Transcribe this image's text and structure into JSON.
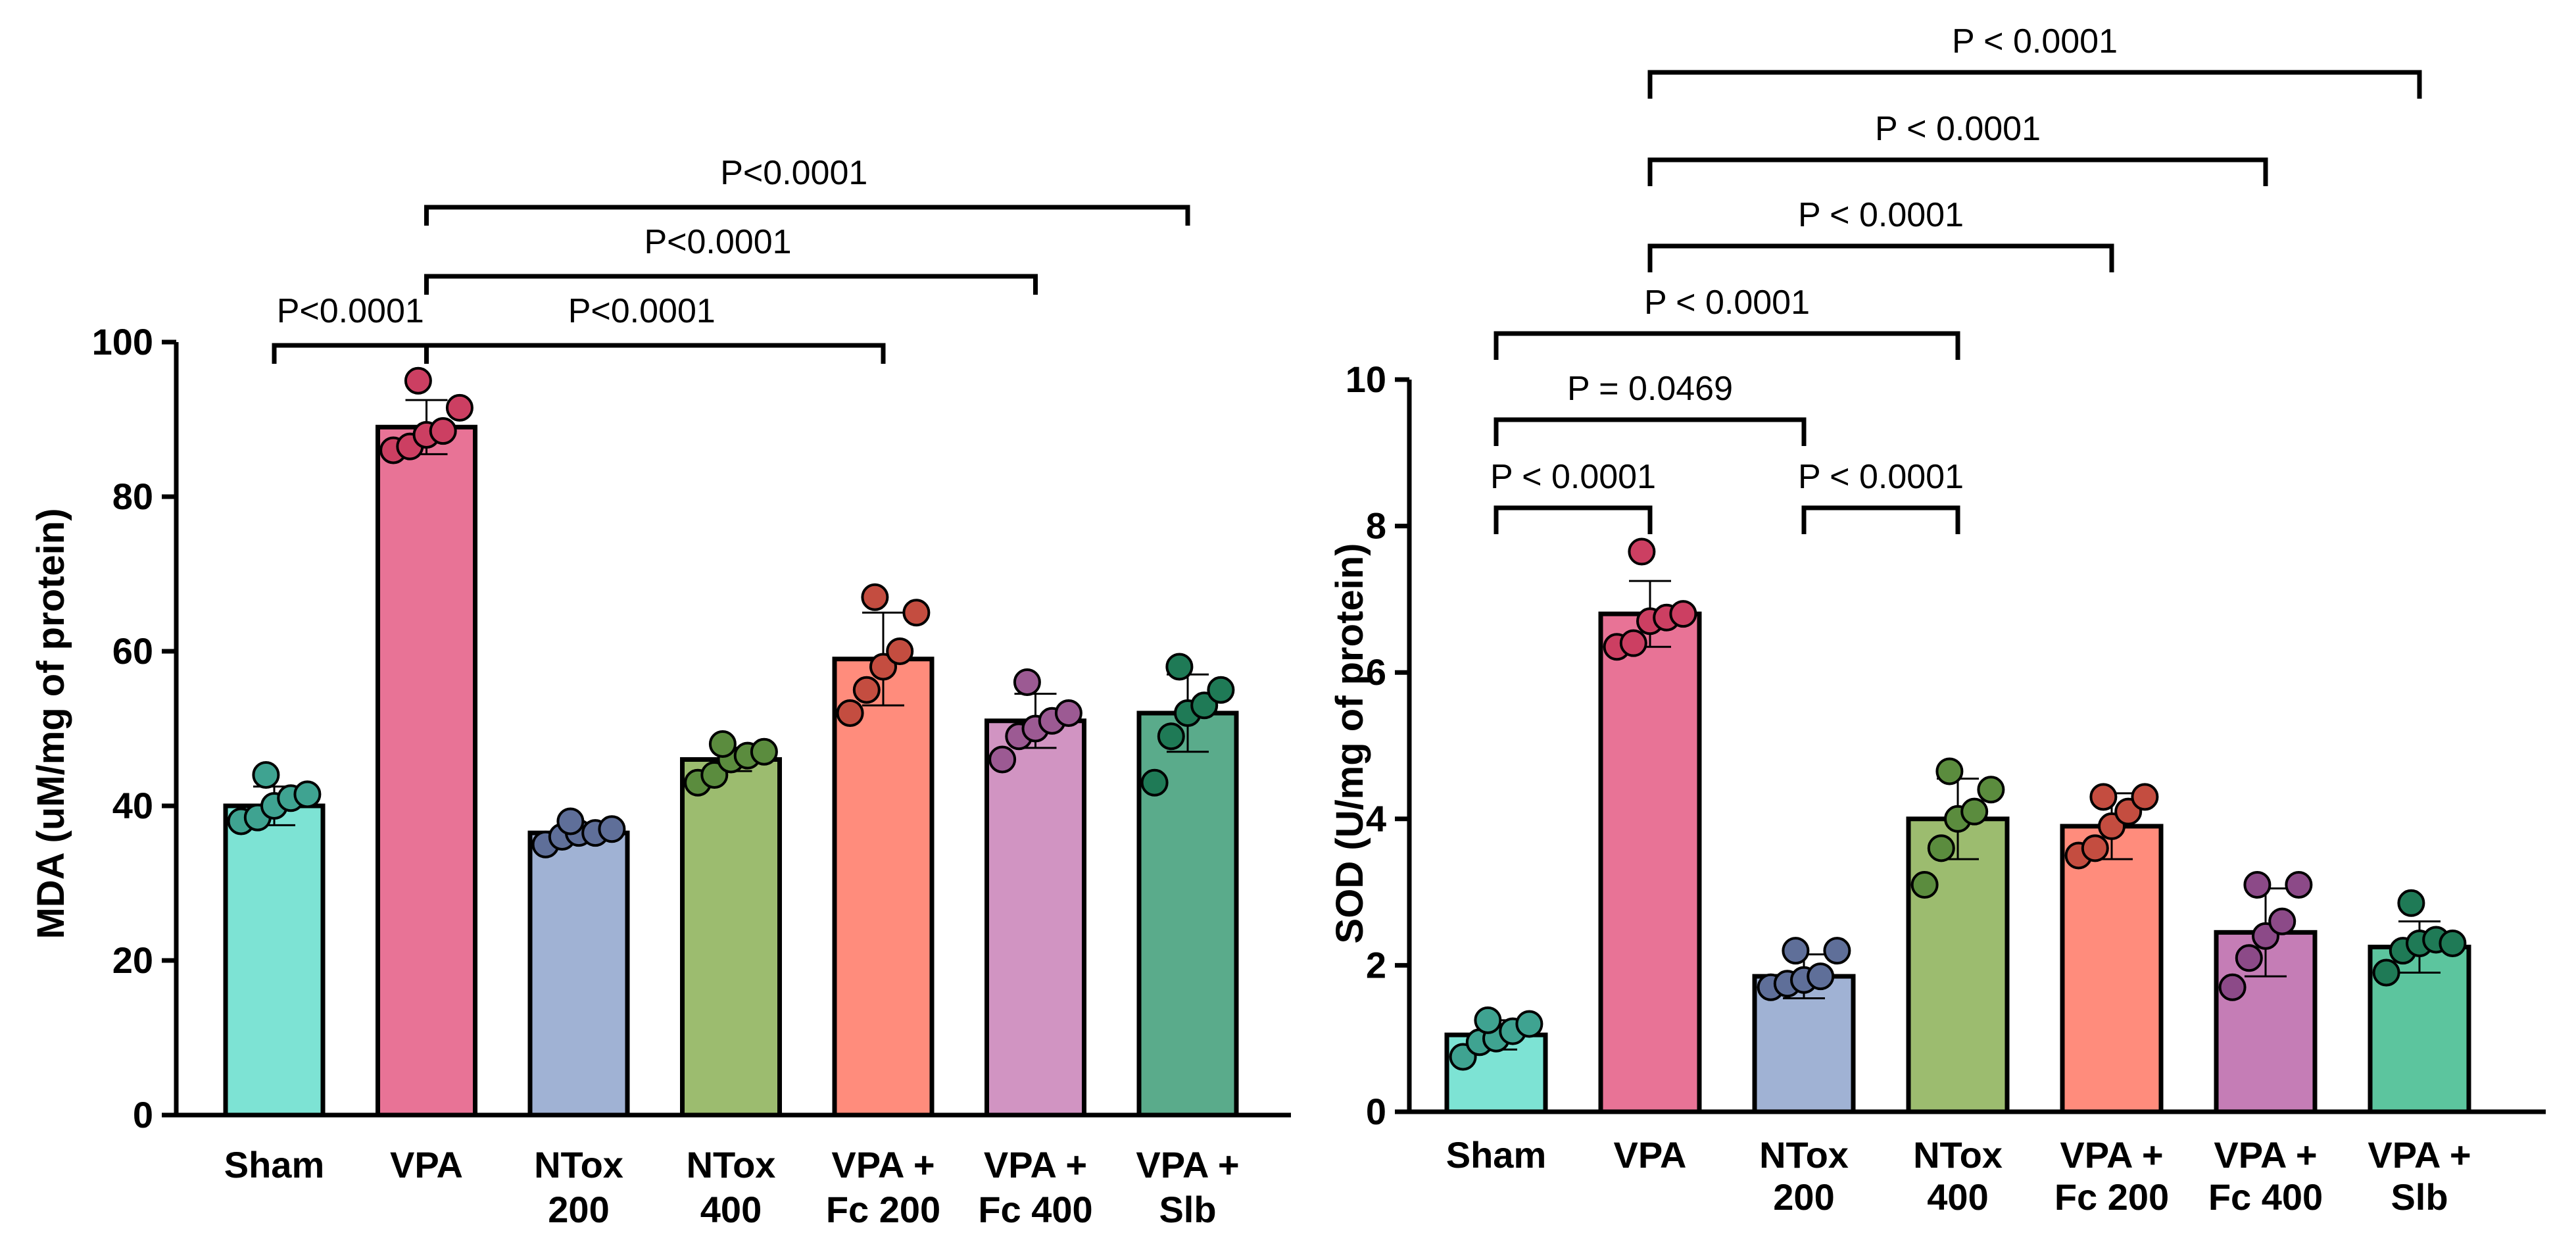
{
  "chart_data": [
    {
      "type": "bar",
      "title": "",
      "xlabel": "",
      "ylabel": "MDA (uM/mg of protein)",
      "ylim": [
        0,
        100
      ],
      "yticks": [
        0,
        20,
        40,
        60,
        80,
        100
      ],
      "categories": [
        [
          "Sham"
        ],
        [
          "VPA"
        ],
        [
          "NTox",
          "200"
        ],
        [
          "NTox",
          "400"
        ],
        [
          "VPA +",
          "Fc 200"
        ],
        [
          "VPA +",
          "Fc 400"
        ],
        [
          "VPA +",
          "Slb"
        ]
      ],
      "values": [
        40,
        89,
        36.5,
        46,
        59,
        51,
        52
      ],
      "errors": [
        2.5,
        3.5,
        1.3,
        1.5,
        6,
        3.5,
        5
      ],
      "colors": [
        "#7de3d4",
        "#e87396",
        "#a0b2d4",
        "#9cbc6f",
        "#ff8c7c",
        "#d194c2",
        "#5aab8b"
      ],
      "point_colors": [
        "#3fa391",
        "#cc3f62",
        "#5f6f99",
        "#5b8c3e",
        "#c44d40",
        "#9c5a93",
        "#1f7a56"
      ],
      "points": [
        [
          38,
          38.5,
          40,
          41,
          41.5,
          44
        ],
        [
          86,
          86.5,
          88,
          88.5,
          91.5,
          95
        ],
        [
          35,
          36,
          36.5,
          36.5,
          37,
          38
        ],
        [
          43,
          44,
          46,
          46.5,
          47,
          48
        ],
        [
          52,
          55,
          58,
          60,
          65,
          67
        ],
        [
          46,
          49,
          50,
          51,
          52,
          56
        ],
        [
          43,
          49,
          52,
          53,
          55,
          58
        ]
      ],
      "comparisons": [
        {
          "from": 0,
          "to": 1,
          "label": "P<0.0001"
        },
        {
          "from": 1,
          "to": 4,
          "label": "P<0.0001"
        },
        {
          "from": 1,
          "to": 5,
          "label": "P<0.0001"
        },
        {
          "from": 1,
          "to": 6,
          "label": "P<0.0001"
        }
      ]
    },
    {
      "type": "bar",
      "title": "",
      "xlabel": "",
      "ylabel": "SOD (U/mg of protein)",
      "ylim": [
        0,
        10
      ],
      "yticks": [
        0,
        2,
        4,
        6,
        8,
        10
      ],
      "categories": [
        [
          "Sham"
        ],
        [
          "VPA"
        ],
        [
          "NTox",
          "200"
        ],
        [
          "NTox",
          "400"
        ],
        [
          "VPA +",
          "Fc 200"
        ],
        [
          "VPA +",
          "Fc 400"
        ],
        [
          "VPA +",
          "Slb"
        ]
      ],
      "values": [
        1.05,
        6.8,
        1.85,
        4.0,
        3.9,
        2.45,
        2.25
      ],
      "errors": [
        0.2,
        0.45,
        0.3,
        0.55,
        0.45,
        0.6,
        0.35
      ],
      "colors": [
        "#7de3d4",
        "#e87396",
        "#a0b2d4",
        "#9cbc6f",
        "#ff8c7c",
        "#c57db6",
        "#5cc59e"
      ],
      "point_colors": [
        "#3fa391",
        "#cc3f62",
        "#5f6f99",
        "#5b8c3e",
        "#c44d40",
        "#8c4a88",
        "#1f7a56"
      ],
      "points": [
        [
          0.75,
          0.95,
          1.0,
          1.1,
          1.2,
          1.25
        ],
        [
          6.35,
          6.4,
          6.7,
          6.75,
          6.8,
          7.65
        ],
        [
          1.7,
          1.75,
          1.8,
          1.85,
          2.2,
          2.2
        ],
        [
          3.1,
          3.6,
          4.0,
          4.1,
          4.4,
          4.65
        ],
        [
          3.5,
          3.6,
          3.9,
          4.1,
          4.3,
          4.3
        ],
        [
          1.7,
          2.1,
          2.4,
          2.6,
          3.1,
          3.1
        ],
        [
          1.9,
          2.2,
          2.3,
          2.35,
          2.3,
          2.85
        ]
      ],
      "comparisons": [
        {
          "from": 0,
          "to": 1,
          "label": "P < 0.0001"
        },
        {
          "from": 2,
          "to": 3,
          "label": "P < 0.0001"
        },
        {
          "from": 0,
          "to": 2,
          "label": "P = 0.0469"
        },
        {
          "from": 0,
          "to": 3,
          "label": "P < 0.0001"
        },
        {
          "from": 1,
          "to": 4,
          "label": "P < 0.0001"
        },
        {
          "from": 1,
          "to": 5,
          "label": "P < 0.0001"
        },
        {
          "from": 1,
          "to": 6,
          "label": "P < 0.0001"
        }
      ]
    }
  ]
}
